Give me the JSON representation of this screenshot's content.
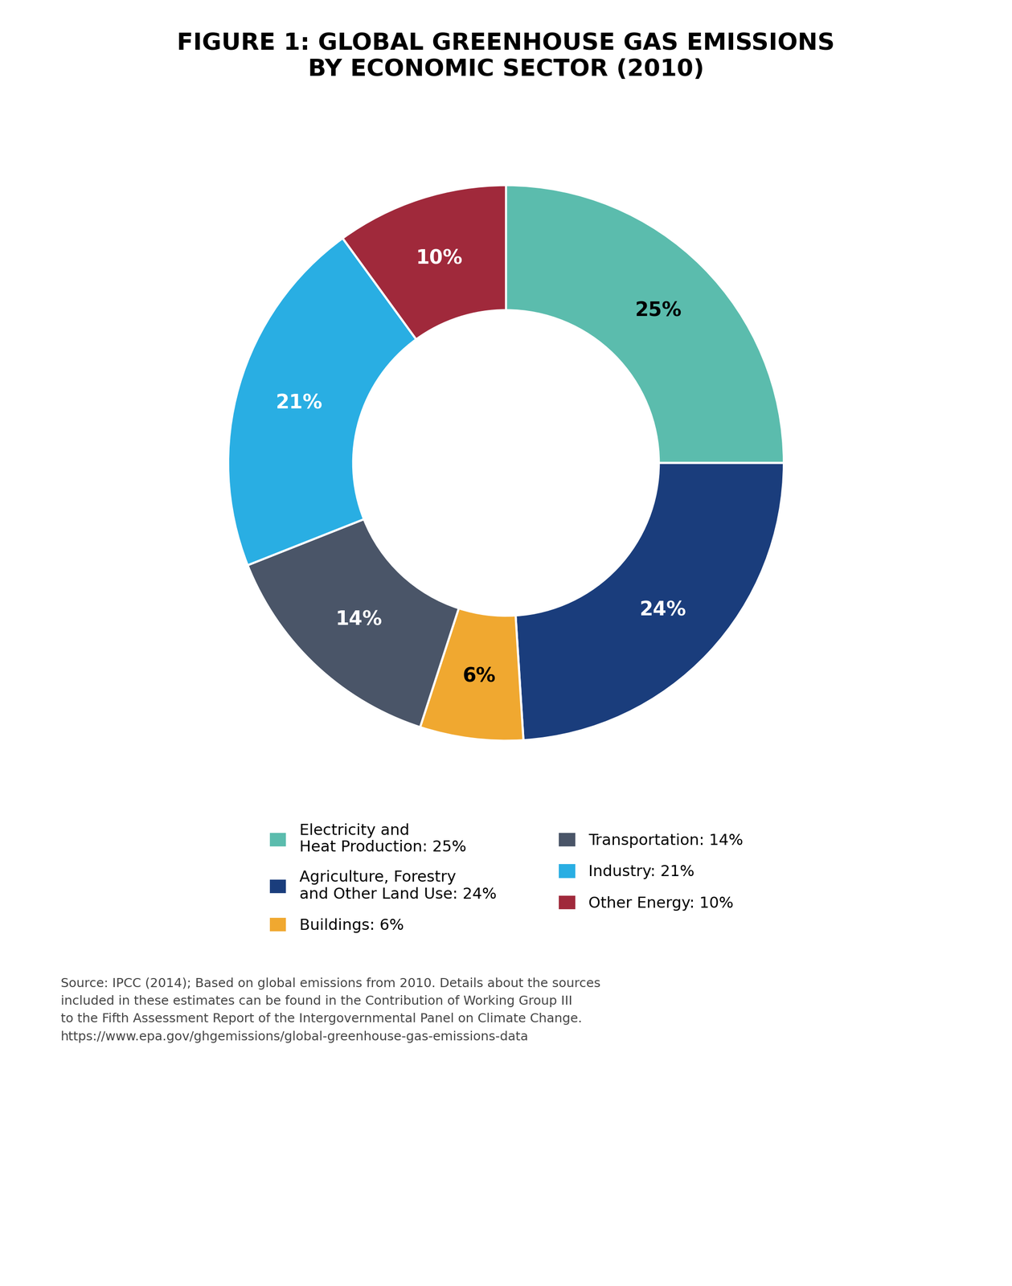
{
  "chart_data": {
    "type": "donut",
    "title": "FIGURE 1: GLOBAL GREENHOUSE GAS EMISSIONS\nBY ECONOMIC SECTOR (2010)",
    "categories": [
      "Electricity and\nHeat Production: 25%",
      "Agriculture, Forestry\nand Other Land Use: 24%",
      "Buildings: 6%",
      "Transportation: 14%",
      "Industry: 21%",
      "Other Energy: 10%"
    ],
    "values": [
      25,
      24,
      6,
      14,
      21,
      10
    ],
    "value_labels": [
      "25%",
      "24%",
      "6%",
      "14%",
      "21%",
      "10%"
    ],
    "colors": [
      "#5bbcad",
      "#1a3d7c",
      "#f0a830",
      "#4a5568",
      "#29aee3",
      "#a0293b"
    ],
    "data_labels": true,
    "legend": "upper center",
    "annotations": [
      "Source: IPCC (2014); Based on global emissions from 2010. Details about the sources\nincluded in these estimates can be found in the Contribution of Working Group III\nto the Fifth Assessment Report of the Intergovernmental Panel on Climate Change.\nhttps://www.epa.gov/ghgemissions/global-greenhouse-gas-emissions-data"
    ]
  }
}
